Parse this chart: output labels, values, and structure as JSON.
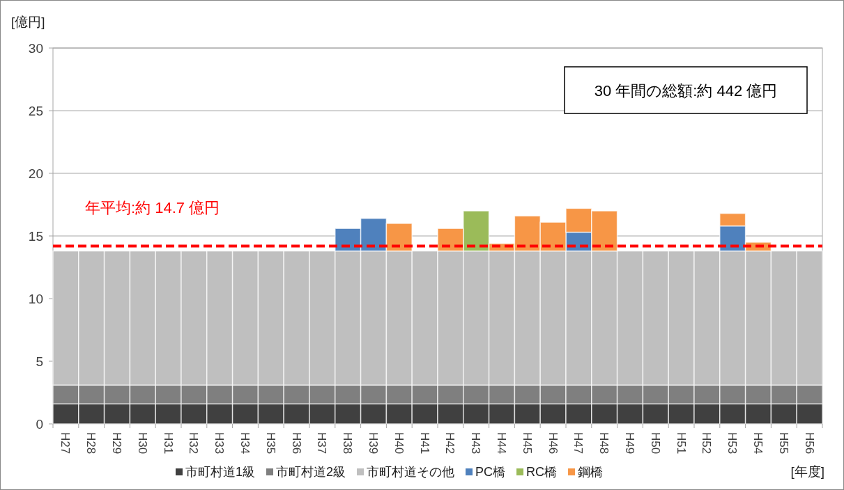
{
  "chart_data": {
    "type": "bar",
    "stacked": true,
    "xlabel": "[年度]",
    "ylabel": "[億円]",
    "categories": [
      "H27",
      "H28",
      "H29",
      "H30",
      "H31",
      "H32",
      "H33",
      "H34",
      "H35",
      "H36",
      "H37",
      "H38",
      "H39",
      "H40",
      "H41",
      "H42",
      "H43",
      "H44",
      "H45",
      "H46",
      "H47",
      "H48",
      "H49",
      "H50",
      "H51",
      "H52",
      "H53",
      "H54",
      "H55",
      "H56"
    ],
    "series": [
      {
        "name": "市町村道1級",
        "color": "#404040",
        "values": [
          1.6,
          1.6,
          1.6,
          1.6,
          1.6,
          1.6,
          1.6,
          1.6,
          1.6,
          1.6,
          1.6,
          1.6,
          1.6,
          1.6,
          1.6,
          1.6,
          1.6,
          1.6,
          1.6,
          1.6,
          1.6,
          1.6,
          1.6,
          1.6,
          1.6,
          1.6,
          1.6,
          1.6,
          1.6,
          1.6
        ]
      },
      {
        "name": "市町村道2級",
        "color": "#7f7f7f",
        "values": [
          1.5,
          1.5,
          1.5,
          1.5,
          1.5,
          1.5,
          1.5,
          1.5,
          1.5,
          1.5,
          1.5,
          1.5,
          1.5,
          1.5,
          1.5,
          1.5,
          1.5,
          1.5,
          1.5,
          1.5,
          1.5,
          1.5,
          1.5,
          1.5,
          1.5,
          1.5,
          1.5,
          1.5,
          1.5,
          1.5
        ]
      },
      {
        "name": "市町村道その他",
        "color": "#bfbfbf",
        "values": [
          10.7,
          10.7,
          10.7,
          10.7,
          10.7,
          10.7,
          10.7,
          10.7,
          10.7,
          10.7,
          10.7,
          10.7,
          10.7,
          10.7,
          10.7,
          10.7,
          10.7,
          10.7,
          10.7,
          10.7,
          10.7,
          10.7,
          10.7,
          10.7,
          10.7,
          10.7,
          10.7,
          10.7,
          10.7,
          10.7
        ]
      },
      {
        "name": "PC橋",
        "color": "#4f81bd",
        "values": [
          null,
          null,
          null,
          null,
          null,
          null,
          null,
          null,
          null,
          null,
          null,
          1.8,
          2.6,
          null,
          null,
          null,
          null,
          null,
          null,
          null,
          1.5,
          null,
          null,
          null,
          null,
          null,
          2.0,
          null,
          null,
          null
        ]
      },
      {
        "name": "RC橋",
        "color": "#9bbb59",
        "values": [
          null,
          null,
          null,
          null,
          null,
          null,
          null,
          null,
          null,
          null,
          null,
          null,
          null,
          null,
          null,
          null,
          3.2,
          null,
          null,
          null,
          null,
          null,
          null,
          null,
          null,
          null,
          null,
          null,
          null,
          null
        ]
      },
      {
        "name": "鋼橋",
        "color": "#f79646",
        "values": [
          null,
          null,
          null,
          null,
          null,
          null,
          null,
          null,
          null,
          null,
          null,
          null,
          null,
          2.2,
          null,
          1.8,
          null,
          0.6,
          2.8,
          2.3,
          1.9,
          3.2,
          null,
          null,
          null,
          null,
          1.0,
          0.7,
          null,
          null
        ]
      }
    ],
    "ylim": [
      0,
      30
    ],
    "yticks": [
      0,
      5,
      10,
      15,
      20,
      25,
      30
    ],
    "grid": "y",
    "legend": "bottom",
    "ref_lines": [
      {
        "axis": "y",
        "value": 14.2,
        "label": "年平均:約 14.7 億円",
        "color": "#ff0000",
        "line_style": "dashed"
      }
    ],
    "annotations": [
      "30 年間の総額:約 442 億円"
    ]
  }
}
